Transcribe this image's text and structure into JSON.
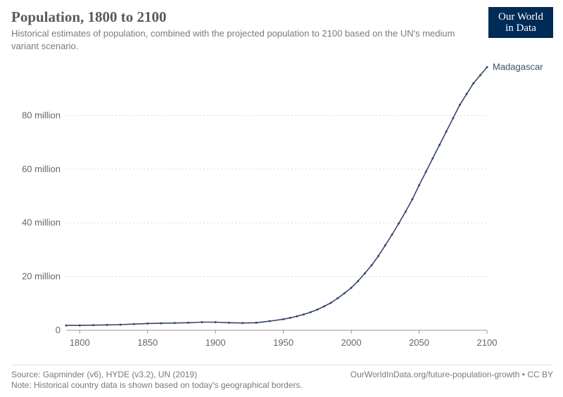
{
  "header": {
    "title": "Population, 1800 to 2100",
    "subtitle": "Historical estimates of population, combined with the projected population to 2100 based on the UN's medium variant scenario."
  },
  "logo": {
    "line1": "Our World",
    "line2": "in Data"
  },
  "chart": {
    "type": "line",
    "background_color": "#ffffff",
    "grid_color": "#d8d8d8",
    "grid_dash": "2,3",
    "axis_color": "#999999",
    "text_color": "#666666",
    "line_color": "#37456b",
    "line_width": 1.6,
    "marker_radius": 1.5,
    "xlim": [
      1790,
      2100
    ],
    "ylim": [
      0,
      100000000
    ],
    "xticks": [
      1800,
      1850,
      1900,
      1950,
      2000,
      2050,
      2100
    ],
    "yticks": [
      {
        "v": 0,
        "label": "0"
      },
      {
        "v": 20000000,
        "label": "20 million"
      },
      {
        "v": 40000000,
        "label": "40 million"
      },
      {
        "v": 60000000,
        "label": "60 million"
      },
      {
        "v": 80000000,
        "label": "80 million"
      }
    ],
    "series": [
      {
        "name": "Madagascar",
        "label": "Madagascar",
        "data": [
          [
            1790,
            1800000
          ],
          [
            1800,
            1800000
          ],
          [
            1810,
            1900000
          ],
          [
            1820,
            2000000
          ],
          [
            1830,
            2100000
          ],
          [
            1840,
            2300000
          ],
          [
            1850,
            2500000
          ],
          [
            1860,
            2600000
          ],
          [
            1870,
            2700000
          ],
          [
            1880,
            2800000
          ],
          [
            1890,
            3000000
          ],
          [
            1900,
            3000000
          ],
          [
            1910,
            2800000
          ],
          [
            1920,
            2700000
          ],
          [
            1930,
            2800000
          ],
          [
            1940,
            3400000
          ],
          [
            1950,
            4100000
          ],
          [
            1955,
            4600000
          ],
          [
            1960,
            5200000
          ],
          [
            1965,
            5900000
          ],
          [
            1970,
            6700000
          ],
          [
            1975,
            7700000
          ],
          [
            1980,
            8900000
          ],
          [
            1985,
            10200000
          ],
          [
            1990,
            11900000
          ],
          [
            1995,
            13800000
          ],
          [
            2000,
            15800000
          ],
          [
            2005,
            18300000
          ],
          [
            2010,
            21200000
          ],
          [
            2015,
            24200000
          ],
          [
            2020,
            27700000
          ],
          [
            2025,
            31600000
          ],
          [
            2030,
            35600000
          ],
          [
            2035,
            39800000
          ],
          [
            2040,
            44200000
          ],
          [
            2045,
            48800000
          ],
          [
            2050,
            54000000
          ],
          [
            2055,
            59000000
          ],
          [
            2060,
            64000000
          ],
          [
            2065,
            69000000
          ],
          [
            2070,
            74000000
          ],
          [
            2075,
            79000000
          ],
          [
            2080,
            84000000
          ],
          [
            2085,
            88000000
          ],
          [
            2090,
            92000000
          ],
          [
            2095,
            95000000
          ],
          [
            2100,
            98000000
          ]
        ]
      }
    ]
  },
  "footer": {
    "source": "Source: Gapminder (v6), HYDE (v3.2), UN (2019)",
    "note": "Note: Historical country data is shown based on today's geographical borders.",
    "attribution": "OurWorldInData.org/future-population-growth • CC BY"
  }
}
